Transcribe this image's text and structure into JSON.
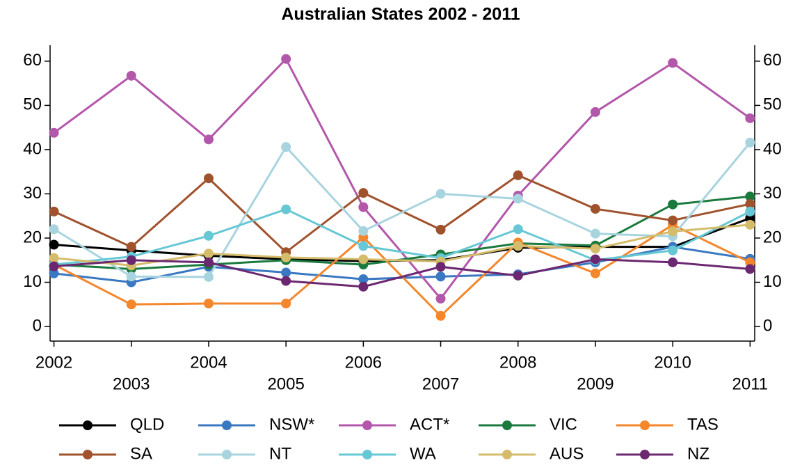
{
  "chart_data": {
    "type": "line",
    "title": "Australian States 2002 - 2011",
    "x": [
      2002,
      2003,
      2004,
      2005,
      2006,
      2007,
      2008,
      2009,
      2010,
      2011
    ],
    "xlim": [
      2001.95,
      2011.06
    ],
    "xticks": [
      2002,
      2003,
      2004,
      2005,
      2006,
      2007,
      2008,
      2009,
      2010,
      2011
    ],
    "ylim": [
      -3.3,
      63.6
    ],
    "yticks": [
      0,
      10,
      20,
      30,
      40,
      50,
      60
    ],
    "series": [
      {
        "name": "QLD",
        "color": "#000000",
        "values": [
          18.5,
          17.2,
          16,
          15.2,
          14.8,
          15,
          17.8,
          18,
          18,
          24.5
        ]
      },
      {
        "name": "NSW*",
        "color": "#3a78c2",
        "values": [
          12,
          10,
          13.5,
          12.2,
          10.7,
          11.3,
          11.8,
          14.5,
          18,
          15.3
        ]
      },
      {
        "name": "ACT*",
        "color": "#b357ab",
        "values": [
          43.8,
          56.7,
          42.3,
          60.5,
          27,
          6.3,
          29.6,
          48.5,
          59.6,
          47.1
        ]
      },
      {
        "name": "VIC",
        "color": "#1a7a3e",
        "values": [
          14,
          13,
          14,
          15,
          14,
          16.3,
          18.8,
          18.3,
          27.6,
          29.4
        ]
      },
      {
        "name": "TAS",
        "color": "#f4862b",
        "values": [
          14,
          5,
          5.2,
          5.2,
          20.2,
          2.4,
          19,
          12,
          23,
          14.5
        ]
      },
      {
        "name": "SA",
        "color": "#a0522d",
        "values": [
          26,
          18,
          33.5,
          16.8,
          30.2,
          21.9,
          34.2,
          26.6,
          24,
          27.7
        ]
      },
      {
        "name": "NT",
        "color": "#a8d4e0",
        "values": [
          22,
          11.3,
          11.2,
          40.6,
          21.6,
          30,
          28.9,
          21,
          20.4,
          41.6
        ]
      },
      {
        "name": "WA",
        "color": "#66c8d4",
        "values": [
          14,
          15.8,
          20.5,
          26.5,
          18.2,
          15.5,
          22,
          15,
          17.2,
          26
        ]
      },
      {
        "name": "AUS",
        "color": "#d4bc6a",
        "values": [
          15.5,
          13.8,
          16.5,
          15.6,
          15.2,
          14.7,
          18.2,
          17.6,
          21.5,
          23
        ]
      },
      {
        "name": "NZ",
        "color": "#6b2870",
        "values": [
          13.6,
          15,
          14.5,
          10.3,
          9,
          13.5,
          11.5,
          15.2,
          14.5,
          13
        ]
      }
    ]
  }
}
